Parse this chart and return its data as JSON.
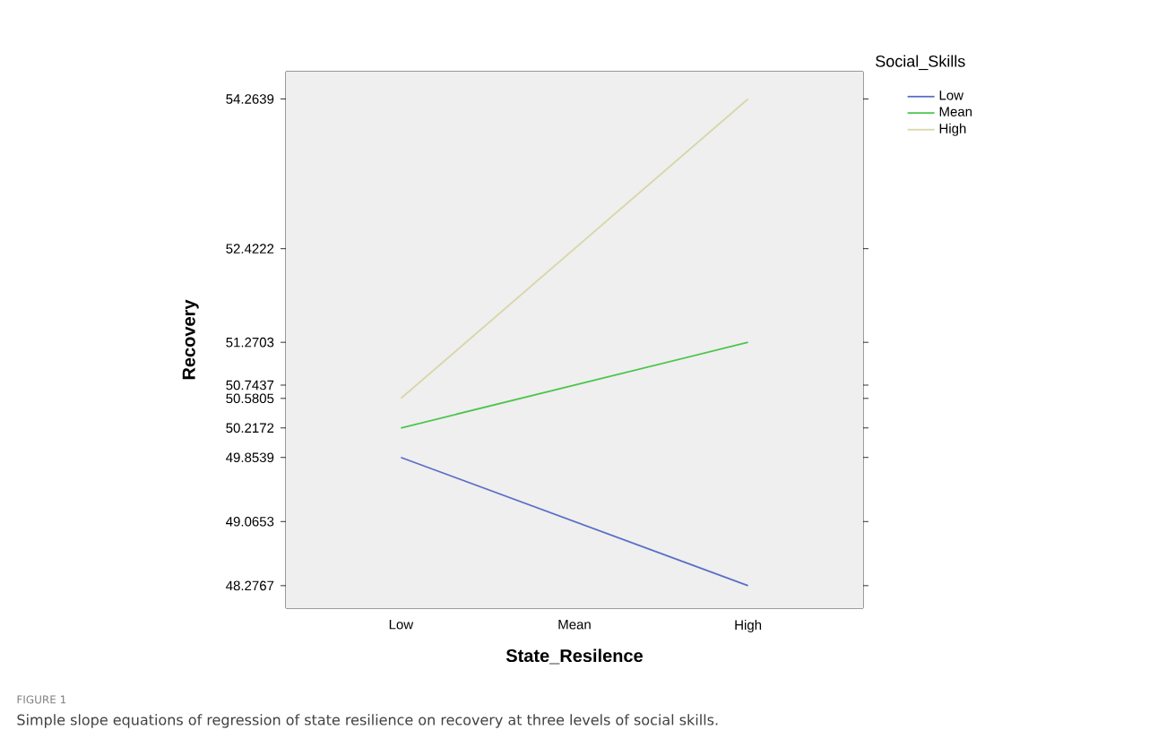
{
  "chart_data": {
    "type": "line",
    "xlabel": "State_Resilence",
    "ylabel": "Recovery",
    "legend_title": "Social_Skills",
    "legend": "top right",
    "categories": [
      "Low",
      "Mean",
      "High"
    ],
    "series": [
      {
        "name": "Low",
        "color": "#5b6fc6",
        "values": [
          49.8539,
          49.0653,
          48.2767
        ]
      },
      {
        "name": "Mean",
        "color": "#4cc54c",
        "values": [
          50.2172,
          50.7437,
          51.2703
        ]
      },
      {
        "name": "High",
        "color": "#d9d6a9",
        "values": [
          50.5805,
          52.4222,
          54.2639
        ]
      }
    ],
    "ylim": [
      48,
      54.6
    ],
    "yticks": [
      48.2767,
      49.0653,
      49.8539,
      50.2172,
      50.5805,
      50.7437,
      51.2703,
      52.4222,
      54.2639
    ],
    "annotations": [
      "FIGURE 1",
      "Simple slope equations of regression of state resilience on recovery at three levels of social skills."
    ]
  }
}
